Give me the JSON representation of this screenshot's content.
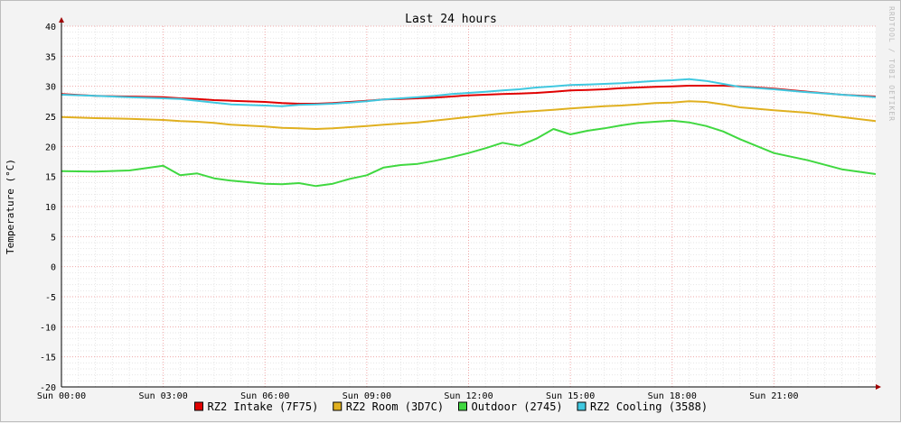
{
  "chart_data": {
    "type": "line",
    "title": "Last 24 hours",
    "xlabel": "",
    "ylabel": "Temperature (°C)",
    "watermark": "RRDTOOL / TOBI OETIKER",
    "ylim": [
      -20,
      40
    ],
    "yticks": [
      40,
      35,
      30,
      25,
      20,
      15,
      10,
      5,
      0,
      -5,
      -10,
      -15,
      -20
    ],
    "xlim": [
      0,
      24
    ],
    "xticks": [
      {
        "hour": 0,
        "label": "Sun 00:00"
      },
      {
        "hour": 3,
        "label": "Sun 03:00"
      },
      {
        "hour": 6,
        "label": "Sun 06:00"
      },
      {
        "hour": 9,
        "label": "Sun 09:00"
      },
      {
        "hour": 12,
        "label": "Sun 12:00"
      },
      {
        "hour": 15,
        "label": "Sun 15:00"
      },
      {
        "hour": 18,
        "label": "Sun 18:00"
      },
      {
        "hour": 21,
        "label": "Sun 21:00"
      }
    ],
    "grid": true,
    "legend_position": "bottom-center",
    "x": [
      0,
      1,
      2,
      3,
      3.5,
      4,
      4.5,
      5,
      6,
      6.5,
      7,
      7.5,
      8,
      8.5,
      9,
      9.5,
      10,
      10.5,
      11,
      11.5,
      12,
      12.5,
      13,
      13.5,
      14,
      14.5,
      15,
      15.5,
      16,
      16.5,
      17,
      17.5,
      18,
      18.5,
      19,
      19.5,
      20,
      21,
      22,
      23,
      24
    ],
    "series": [
      {
        "name": "RZ2 Intake (7F75)",
        "color": "#e00000",
        "values": [
          28.7,
          28.4,
          28.3,
          28.2,
          28.0,
          27.9,
          27.7,
          27.6,
          27.4,
          27.2,
          27.1,
          27.1,
          27.2,
          27.4,
          27.6,
          27.8,
          27.9,
          28.0,
          28.1,
          28.3,
          28.5,
          28.6,
          28.7,
          28.8,
          28.9,
          29.1,
          29.3,
          29.4,
          29.5,
          29.7,
          29.8,
          29.9,
          30.0,
          30.1,
          30.1,
          30.1,
          30.0,
          29.6,
          29.1,
          28.6,
          28.3
        ]
      },
      {
        "name": "RZ2 Room (3D7C)",
        "color": "#e0b020",
        "values": [
          24.9,
          24.7,
          24.6,
          24.4,
          24.2,
          24.1,
          23.9,
          23.6,
          23.3,
          23.1,
          23.0,
          22.9,
          23.0,
          23.2,
          23.4,
          23.6,
          23.8,
          24.0,
          24.3,
          24.6,
          24.9,
          25.2,
          25.5,
          25.7,
          25.9,
          26.1,
          26.3,
          26.5,
          26.7,
          26.8,
          27.0,
          27.2,
          27.3,
          27.5,
          27.4,
          27.0,
          26.5,
          26.0,
          25.6,
          24.9,
          24.2
        ]
      },
      {
        "name": "Outdoor (2745)",
        "color": "#40d840",
        "values": [
          15.9,
          15.8,
          16.0,
          16.8,
          15.2,
          15.5,
          14.7,
          14.3,
          13.8,
          13.7,
          13.9,
          13.4,
          13.8,
          14.6,
          15.2,
          16.5,
          16.9,
          17.1,
          17.6,
          18.2,
          18.9,
          19.7,
          20.6,
          20.1,
          21.3,
          22.9,
          22.0,
          22.6,
          23.0,
          23.5,
          23.9,
          24.1,
          24.3,
          24.0,
          23.4,
          22.5,
          21.2,
          18.9,
          17.7,
          16.2,
          15.4
        ]
      },
      {
        "name": "RZ2 Cooling (3588)",
        "color": "#40c8e0",
        "values": [
          28.6,
          28.4,
          28.2,
          28.0,
          27.9,
          27.6,
          27.3,
          27.0,
          26.8,
          26.7,
          26.9,
          27.0,
          27.1,
          27.3,
          27.5,
          27.8,
          28.0,
          28.2,
          28.4,
          28.7,
          28.9,
          29.1,
          29.3,
          29.5,
          29.8,
          30.0,
          30.2,
          30.3,
          30.4,
          30.5,
          30.7,
          30.9,
          31.0,
          31.2,
          30.9,
          30.4,
          29.9,
          29.5,
          29.0,
          28.6,
          28.2
        ]
      }
    ]
  }
}
